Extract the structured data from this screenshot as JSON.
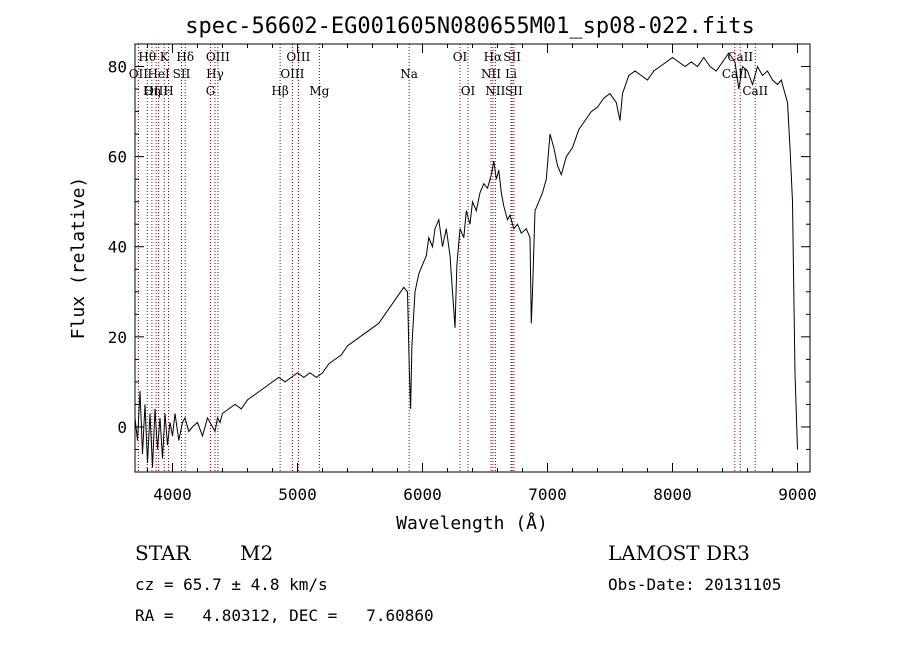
{
  "chart_data": {
    "type": "line",
    "title": "spec-56602-EG001605N080655M01_sp08-022.fits",
    "xlabel": "Wavelength (Å)",
    "ylabel": "Flux (relative)",
    "xlim": [
      3700,
      9100
    ],
    "ylim": [
      -10,
      85
    ],
    "xticks": [
      4000,
      5000,
      6000,
      7000,
      8000,
      9000
    ],
    "yticks": [
      0,
      20,
      40,
      60,
      80
    ],
    "grid": false,
    "line_colors": {
      "spectrum": "#000000",
      "lines": "#8b0000"
    },
    "series": [
      {
        "points": [
          [
            3700,
            2
          ],
          [
            3720,
            -3
          ],
          [
            3740,
            8
          ],
          [
            3760,
            -6
          ],
          [
            3780,
            5
          ],
          [
            3800,
            -8
          ],
          [
            3820,
            3
          ],
          [
            3840,
            -9
          ],
          [
            3860,
            4
          ],
          [
            3880,
            -5
          ],
          [
            3900,
            2
          ],
          [
            3920,
            -7
          ],
          [
            3940,
            3
          ],
          [
            3960,
            -4
          ],
          [
            3980,
            1
          ],
          [
            4000,
            -2
          ],
          [
            4020,
            3
          ],
          [
            4050,
            -3
          ],
          [
            4080,
            1
          ],
          [
            4100,
            2
          ],
          [
            4130,
            -1
          ],
          [
            4160,
            0
          ],
          [
            4200,
            1
          ],
          [
            4240,
            -2
          ],
          [
            4280,
            2
          ],
          [
            4320,
            0
          ],
          [
            4340,
            -1
          ],
          [
            4360,
            2
          ],
          [
            4380,
            1
          ],
          [
            4400,
            3
          ],
          [
            4450,
            4
          ],
          [
            4500,
            5
          ],
          [
            4550,
            4
          ],
          [
            4600,
            6
          ],
          [
            4650,
            7
          ],
          [
            4700,
            8
          ],
          [
            4750,
            9
          ],
          [
            4800,
            10
          ],
          [
            4850,
            11
          ],
          [
            4900,
            10
          ],
          [
            4950,
            11
          ],
          [
            5000,
            12
          ],
          [
            5050,
            11
          ],
          [
            5100,
            12
          ],
          [
            5150,
            11
          ],
          [
            5200,
            12
          ],
          [
            5250,
            14
          ],
          [
            5300,
            15
          ],
          [
            5350,
            16
          ],
          [
            5400,
            18
          ],
          [
            5450,
            19
          ],
          [
            5500,
            20
          ],
          [
            5550,
            21
          ],
          [
            5600,
            22
          ],
          [
            5650,
            23
          ],
          [
            5700,
            25
          ],
          [
            5750,
            27
          ],
          [
            5800,
            29
          ],
          [
            5850,
            31
          ],
          [
            5880,
            30
          ],
          [
            5895,
            12
          ],
          [
            5905,
            4
          ],
          [
            5915,
            18
          ],
          [
            5940,
            30
          ],
          [
            5970,
            34
          ],
          [
            6000,
            36
          ],
          [
            6030,
            38
          ],
          [
            6050,
            42
          ],
          [
            6080,
            40
          ],
          [
            6100,
            44
          ],
          [
            6130,
            46
          ],
          [
            6160,
            40
          ],
          [
            6190,
            44
          ],
          [
            6220,
            38
          ],
          [
            6240,
            30
          ],
          [
            6260,
            22
          ],
          [
            6275,
            36
          ],
          [
            6300,
            44
          ],
          [
            6330,
            42
          ],
          [
            6350,
            48
          ],
          [
            6380,
            45
          ],
          [
            6400,
            50
          ],
          [
            6430,
            48
          ],
          [
            6460,
            52
          ],
          [
            6490,
            54
          ],
          [
            6520,
            53
          ],
          [
            6550,
            56
          ],
          [
            6570,
            59
          ],
          [
            6590,
            55
          ],
          [
            6610,
            57
          ],
          [
            6630,
            52
          ],
          [
            6650,
            49
          ],
          [
            6680,
            46
          ],
          [
            6700,
            47
          ],
          [
            6730,
            44
          ],
          [
            6760,
            45
          ],
          [
            6790,
            43
          ],
          [
            6830,
            44
          ],
          [
            6860,
            42
          ],
          [
            6870,
            23
          ],
          [
            6880,
            30
          ],
          [
            6900,
            48
          ],
          [
            6930,
            50
          ],
          [
            6960,
            52
          ],
          [
            6990,
            55
          ],
          [
            7020,
            65
          ],
          [
            7050,
            62
          ],
          [
            7080,
            58
          ],
          [
            7110,
            56
          ],
          [
            7150,
            60
          ],
          [
            7200,
            62
          ],
          [
            7250,
            66
          ],
          [
            7300,
            68
          ],
          [
            7350,
            70
          ],
          [
            7400,
            71
          ],
          [
            7450,
            73
          ],
          [
            7500,
            74
          ],
          [
            7550,
            72
          ],
          [
            7580,
            68
          ],
          [
            7600,
            74
          ],
          [
            7650,
            78
          ],
          [
            7700,
            79
          ],
          [
            7750,
            78
          ],
          [
            7800,
            77
          ],
          [
            7850,
            79
          ],
          [
            7900,
            80
          ],
          [
            7950,
            81
          ],
          [
            8000,
            82
          ],
          [
            8050,
            81
          ],
          [
            8100,
            80
          ],
          [
            8150,
            81
          ],
          [
            8200,
            80
          ],
          [
            8250,
            82
          ],
          [
            8300,
            80
          ],
          [
            8350,
            79
          ],
          [
            8400,
            81
          ],
          [
            8450,
            83
          ],
          [
            8500,
            81
          ],
          [
            8530,
            75
          ],
          [
            8560,
            80
          ],
          [
            8600,
            79
          ],
          [
            8640,
            76
          ],
          [
            8680,
            80
          ],
          [
            8720,
            78
          ],
          [
            8760,
            79
          ],
          [
            8800,
            77
          ],
          [
            8840,
            76
          ],
          [
            8870,
            77
          ],
          [
            8900,
            74
          ],
          [
            8920,
            72
          ],
          [
            8940,
            62
          ],
          [
            8960,
            50
          ],
          [
            8970,
            30
          ],
          [
            8980,
            12
          ],
          [
            8990,
            3
          ],
          [
            9000,
            -5
          ]
        ]
      }
    ],
    "lines": [
      {
        "label": "Hθ",
        "row": 0,
        "wave": 3798
      },
      {
        "label": "OII",
        "row": 1,
        "wave": 3727
      },
      {
        "label": "OIII",
        "row": 2,
        "wave": 3869
      },
      {
        "label": "K",
        "row": 0,
        "wave": 3934
      },
      {
        "label": "HeI",
        "row": 1,
        "wave": 3889
      },
      {
        "label": "Hη",
        "row": 2,
        "wave": 3835
      },
      {
        "label": "Hδ",
        "row": 0,
        "wave": 4102
      },
      {
        "label": "SII",
        "row": 1,
        "wave": 4072
      },
      {
        "label": "H",
        "row": 2,
        "wave": 3968
      },
      {
        "label": "OIII",
        "row": 0,
        "wave": 4363
      },
      {
        "label": "Hγ",
        "row": 1,
        "wave": 4340
      },
      {
        "label": "G",
        "row": 2,
        "wave": 4304
      },
      {
        "label": "OIII",
        "row": 0,
        "wave": 5007
      },
      {
        "label": "OIII",
        "row": 1,
        "wave": 4959
      },
      {
        "label": "Hβ",
        "row": 2,
        "wave": 4861
      },
      {
        "label": "Mg",
        "row": 2,
        "wave": 5175
      },
      {
        "label": "Na",
        "row": 1,
        "wave": 5893
      },
      {
        "label": "OI",
        "row": 0,
        "wave": 6300
      },
      {
        "label": "OI",
        "row": 2,
        "wave": 6364
      },
      {
        "label": "Hα",
        "row": 0,
        "wave": 6563
      },
      {
        "label": "SII",
        "row": 0,
        "wave": 6717
      },
      {
        "label": "NII",
        "row": 1,
        "wave": 6548
      },
      {
        "label": "Li",
        "row": 1,
        "wave": 6708
      },
      {
        "label": "NII",
        "row": 2,
        "wave": 6583
      },
      {
        "label": "SII",
        "row": 2,
        "wave": 6731
      },
      {
        "label": "CaII",
        "row": 0,
        "wave": 8542
      },
      {
        "label": "CaII",
        "row": 1,
        "wave": 8498
      },
      {
        "label": "CaII",
        "row": 2,
        "wave": 8662
      }
    ]
  },
  "info": {
    "object_class": "STAR",
    "subclass": "M2",
    "survey": "LAMOST DR3",
    "redshift": "cz = 65.7 ± 4.8 km/s",
    "obs_date": "Obs-Date: 20131105",
    "coords": "RA =   4.80312, DEC =   7.60860"
  }
}
